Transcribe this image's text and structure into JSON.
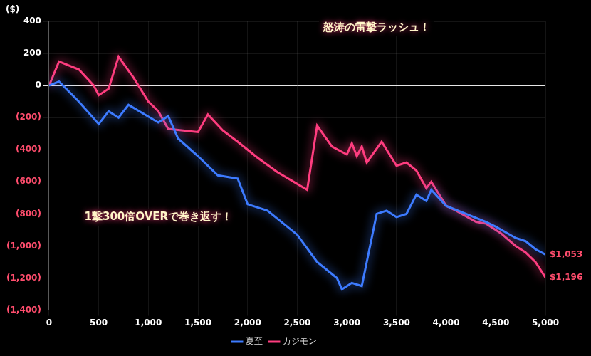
{
  "chart_data": {
    "type": "line",
    "ylabel": "($)",
    "xlim": [
      0,
      5000
    ],
    "xticks": [
      0,
      500,
      {
        "value": 1000,
        "label": "1,000"
      },
      {
        "value": 1500,
        "label": "1,500"
      },
      {
        "value": 2000,
        "label": "2,000"
      },
      {
        "value": 2500,
        "label": "2,500"
      },
      {
        "value": 3000,
        "label": "3,000"
      },
      {
        "value": 3500,
        "label": "3,500"
      },
      {
        "value": 4000,
        "label": "4,000"
      },
      {
        "value": 4500,
        "label": "4,500"
      },
      {
        "value": 5000,
        "label": "5,000"
      }
    ],
    "ylim": [
      -1400,
      400
    ],
    "yticks": [
      400,
      200,
      0,
      {
        "value": -200,
        "label": "(200)"
      },
      {
        "value": -400,
        "label": "(400)"
      },
      {
        "value": -600,
        "label": "(600)"
      },
      {
        "value": -800,
        "label": "(800)"
      },
      {
        "value": -1000,
        "label": "(1,000)"
      },
      {
        "value": -1200,
        "label": "(1,200)"
      },
      {
        "value": -1400,
        "label": "(1,400)"
      }
    ],
    "grid": true,
    "legend": "bottom",
    "series": [
      {
        "name": "夏至",
        "color": "#3d7bff",
        "x": [
          0,
          100,
          300,
          500,
          600,
          700,
          800,
          1100,
          1200,
          1300,
          1500,
          1700,
          1900,
          2000,
          2200,
          2500,
          2700,
          2900,
          2950,
          3050,
          3150,
          3300,
          3400,
          3500,
          3600,
          3700,
          3800,
          3850,
          4000,
          4200,
          4400,
          4500,
          4700,
          4800,
          4900,
          5000
        ],
        "values": [
          0,
          25,
          -100,
          -240,
          -160,
          -200,
          -120,
          -230,
          -190,
          -330,
          -440,
          -560,
          -580,
          -740,
          -780,
          -930,
          -1100,
          -1200,
          -1270,
          -1230,
          -1250,
          -800,
          -780,
          -820,
          -800,
          -680,
          -720,
          -650,
          -750,
          -800,
          -850,
          -880,
          -950,
          -970,
          -1020,
          -1053
        ],
        "end_label": "$1,053"
      },
      {
        "name": "カジモン",
        "color": "#ff3d7f",
        "x": [
          0,
          100,
          300,
          450,
          500,
          600,
          700,
          850,
          1000,
          1100,
          1200,
          1500,
          1600,
          1750,
          1900,
          2100,
          2300,
          2600,
          2700,
          2850,
          3000,
          3050,
          3100,
          3150,
          3200,
          3350,
          3500,
          3600,
          3700,
          3800,
          3850,
          4000,
          4100,
          4300,
          4400,
          4550,
          4700,
          4800,
          4900,
          5000
        ],
        "values": [
          0,
          150,
          100,
          0,
          -60,
          -20,
          180,
          50,
          -100,
          -160,
          -270,
          -290,
          -180,
          -280,
          -350,
          -450,
          -540,
          -650,
          -250,
          -380,
          -430,
          -360,
          -440,
          -380,
          -480,
          -350,
          -500,
          -480,
          -530,
          -640,
          -600,
          -750,
          -780,
          -850,
          -860,
          -920,
          -1000,
          -1040,
          -1100,
          -1196
        ],
        "end_label": "$1,196"
      }
    ],
    "annotations": [
      {
        "text": "怒涛の雷撃ラッシュ！",
        "x": 3300,
        "y": 360
      },
      {
        "text": "1撃300倍OVERで巻き返す！",
        "x": 1100,
        "y": -820
      }
    ]
  }
}
